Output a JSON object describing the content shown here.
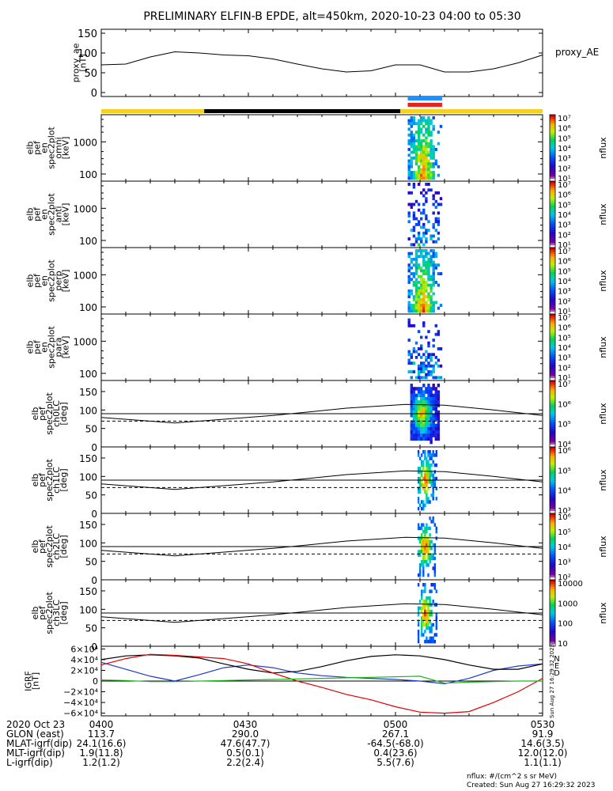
{
  "title": "PRELIMINARY ELFIN-B EPDE, alt=450km, 2020-10-23 04:00 to 05:30",
  "colors": {
    "black": "#000000",
    "yellow": "#f7d11e",
    "blue_bar": "#1e90ff",
    "red_bar": "#e8231d",
    "red": "#e00000",
    "blue": "#1c39c9",
    "green": "#18b818"
  },
  "chart_data": [
    {
      "type": "line",
      "name": "proxy_ae",
      "ylabel_lines": [
        "proxy_ae",
        "[nT]"
      ],
      "series_label": "proxy_AE",
      "yticks": [
        "150",
        "100",
        "50",
        "0"
      ],
      "ylim": [
        -10,
        160
      ],
      "x_min": [
        0,
        5,
        10,
        15,
        20,
        25,
        30,
        35,
        40,
        45,
        50,
        55,
        60,
        65,
        70,
        75,
        80,
        85,
        90
      ],
      "values": [
        70,
        72,
        90,
        103,
        100,
        95,
        93,
        85,
        72,
        60,
        52,
        55,
        70,
        70,
        52,
        52,
        60,
        75,
        95
      ]
    },
    {
      "type": "line",
      "name": "region_bar",
      "segments": [
        {
          "x0": 0,
          "x1": 21,
          "color": "yellow"
        },
        {
          "x0": 21,
          "x1": 61,
          "color": "black"
        },
        {
          "x0": 61,
          "x1": 90,
          "color": "yellow"
        }
      ],
      "markers": [
        {
          "x0": 62.5,
          "x1": 69.5,
          "color": "blue_bar",
          "row": 0
        },
        {
          "x0": 62.5,
          "x1": 69.5,
          "color": "red_bar",
          "row": 1
        }
      ]
    },
    {
      "type": "heatmap",
      "name": "en_omni",
      "ylabel_lines": [
        "elb",
        "pef",
        "en",
        "spec2plot",
        "omni",
        "[keV]"
      ],
      "yticks": [
        "1000",
        "100"
      ],
      "ylog": true,
      "ylim": [
        60,
        7000
      ],
      "colorbar": {
        "ticks": [
          "10⁷",
          "10⁶",
          "10⁵",
          "10⁴",
          "10³",
          "10²",
          "10¹"
        ],
        "label": "nflux"
      }
    },
    {
      "type": "heatmap",
      "name": "en_anti",
      "ylabel_lines": [
        "elb",
        "pef",
        "en",
        "spec2plot",
        "anti",
        "[keV]"
      ],
      "yticks": [
        "1000",
        "100"
      ],
      "ylog": true,
      "ylim": [
        60,
        7000
      ],
      "colorbar": {
        "ticks": [
          "10⁷",
          "10⁶",
          "10⁵",
          "10⁴",
          "10³",
          "10²",
          "10¹"
        ],
        "label": "nflux"
      }
    },
    {
      "type": "heatmap",
      "name": "en_perp",
      "ylabel_lines": [
        "elb",
        "pef",
        "en",
        "spec2plot",
        "perp",
        "[keV]"
      ],
      "yticks": [
        "1000",
        "100"
      ],
      "ylog": true,
      "ylim": [
        60,
        7000
      ],
      "colorbar": {
        "ticks": [
          "10⁷",
          "10⁶",
          "10⁵",
          "10⁴",
          "10³",
          "10²",
          "10¹"
        ],
        "label": "nflux"
      }
    },
    {
      "type": "heatmap",
      "name": "en_para",
      "ylabel_lines": [
        "elb",
        "pef",
        "en",
        "spec2plot",
        "para",
        "[keV]"
      ],
      "yticks": [
        "1000",
        "100"
      ],
      "ylog": true,
      "ylim": [
        60,
        7000
      ],
      "colorbar": {
        "ticks": [
          "10⁷",
          "10⁶",
          "10⁵",
          "10⁴",
          "10³",
          "10²",
          "10¹"
        ],
        "label": "nflux"
      }
    },
    {
      "type": "heatmap",
      "name": "pa_ch0",
      "ylabel_lines": [
        "elb",
        "pef",
        "spec2plot",
        "ch0LC",
        "[deg]"
      ],
      "yticks": [
        "150",
        "100",
        "50",
        "0"
      ],
      "ylim": [
        0,
        180
      ],
      "colorbar": {
        "ticks": [
          "10⁷",
          "10⁶",
          "10⁵",
          "10⁴"
        ],
        "label": "nflux"
      },
      "lc_solid_x": [
        0,
        15,
        35,
        50,
        62,
        70,
        80,
        90
      ],
      "lc_solid": [
        80,
        65,
        85,
        105,
        115,
        113,
        100,
        85
      ],
      "lc_flat": 90,
      "lc_dash": 70
    },
    {
      "type": "heatmap",
      "name": "pa_ch1",
      "ylabel_lines": [
        "elb",
        "pef",
        "spec2plot",
        "ch1LC",
        "[deg]"
      ],
      "yticks": [
        "150",
        "100",
        "50",
        "0"
      ],
      "ylim": [
        0,
        180
      ],
      "colorbar": {
        "ticks": [
          "10⁶",
          "10⁵",
          "10⁴",
          "10³"
        ],
        "label": "nflux"
      },
      "lc_solid_x": [
        0,
        15,
        35,
        50,
        62,
        70,
        80,
        90
      ],
      "lc_solid": [
        80,
        65,
        85,
        105,
        115,
        113,
        100,
        85
      ],
      "lc_flat": 90,
      "lc_dash": 70
    },
    {
      "type": "heatmap",
      "name": "pa_ch2",
      "ylabel_lines": [
        "elb",
        "pef",
        "spec2plot",
        "ch2LC",
        "[deg]"
      ],
      "yticks": [
        "150",
        "100",
        "50",
        "0"
      ],
      "ylim": [
        0,
        180
      ],
      "colorbar": {
        "ticks": [
          "10⁶",
          "10⁵",
          "10⁴",
          "10³",
          "10²"
        ],
        "label": "nflux"
      },
      "lc_solid_x": [
        0,
        15,
        35,
        50,
        62,
        70,
        80,
        90
      ],
      "lc_solid": [
        80,
        65,
        85,
        105,
        115,
        113,
        100,
        85
      ],
      "lc_flat": 90,
      "lc_dash": 70
    },
    {
      "type": "heatmap",
      "name": "pa_ch3",
      "ylabel_lines": [
        "elb",
        "pef",
        "spec2plot",
        "ch3LC",
        "[deg]"
      ],
      "yticks": [
        "150",
        "100",
        "50",
        "0"
      ],
      "ylim": [
        0,
        180
      ],
      "colorbar": {
        "ticks": [
          "10000",
          "1000",
          "100",
          "10"
        ],
        "label": "nflux"
      },
      "lc_solid_x": [
        0,
        15,
        35,
        50,
        62,
        70,
        80,
        90
      ],
      "lc_solid": [
        80,
        65,
        85,
        105,
        115,
        113,
        100,
        85
      ],
      "lc_flat": 90,
      "lc_dash": 70
    },
    {
      "type": "line",
      "name": "igrf",
      "ylabel_lines": [
        "IGRF",
        "[nT]"
      ],
      "yticks": [
        "6×10⁴",
        "4×10⁴",
        "2×10⁴",
        "0",
        "−2×10⁴",
        "−4×10⁴",
        "−6×10⁴"
      ],
      "ylim": [
        -65000,
        65000
      ],
      "x": [
        0,
        5,
        10,
        15,
        20,
        25,
        30,
        35,
        40,
        45,
        50,
        55,
        60,
        65,
        70,
        75,
        80,
        85,
        90
      ],
      "series": [
        {
          "label": "N",
          "color": "blue",
          "values": [
            35000,
            22000,
            9000,
            0,
            12000,
            25000,
            30000,
            25000,
            15000,
            10000,
            7000,
            5000,
            3000,
            0,
            -5000,
            5000,
            20000,
            28000,
            32000
          ]
        },
        {
          "label": "E",
          "color": "black",
          "values": [
            40000,
            47000,
            49000,
            47000,
            43000,
            32000,
            22000,
            15000,
            18000,
            27000,
            38000,
            46000,
            49000,
            47000,
            40000,
            30000,
            22000,
            22000,
            32000
          ]
        },
        {
          "label": "D",
          "color": "red",
          "values": [
            30000,
            42000,
            50000,
            48000,
            45000,
            42000,
            32000,
            15000,
            0,
            -12000,
            -25000,
            -35000,
            -48000,
            -58000,
            -60000,
            -57000,
            -40000,
            -20000,
            5000
          ]
        },
        {
          "label": "",
          "color": "green",
          "values": [
            2000,
            1000,
            -1000,
            -1000,
            0,
            1000,
            2000,
            3000,
            4000,
            5000,
            6000,
            7000,
            8000,
            9000,
            -4000,
            -2000,
            -1000,
            0,
            0
          ]
        }
      ],
      "legend": [
        "N",
        "E",
        "D"
      ]
    }
  ],
  "footer": {
    "rows": [
      {
        "label": "2020 Oct 23",
        "values": [
          "0400",
          "0430",
          "0500",
          "0530"
        ]
      },
      {
        "label": "GLON (east)",
        "values": [
          "113.7",
          "290.0",
          "267.1",
          "91.9"
        ]
      },
      {
        "label": "MLAT-igrf(dip)",
        "values": [
          "24.1(16.6)",
          "47.6(47.7)",
          "-64.5(-68.0)",
          "14.6(3.5)"
        ]
      },
      {
        "label": "MLT-igrf(dip)",
        "values": [
          "1.9(11.8)",
          "0.5(0.1)",
          "0.4(23.6)",
          "12.0(12.0)"
        ]
      },
      {
        "label": "L-igrf(dip)",
        "values": [
          "1.2(1.2)",
          "2.2(2.4)",
          "5.5(7.6)",
          "1.1(1.1)"
        ]
      }
    ],
    "unit_note": "nflux: #/(cm^2 s sr MeV)",
    "created": "Created: Sun Aug 27 16:29:32 2023",
    "stamp": "Sun Aug 27 16:29:32 2023"
  }
}
